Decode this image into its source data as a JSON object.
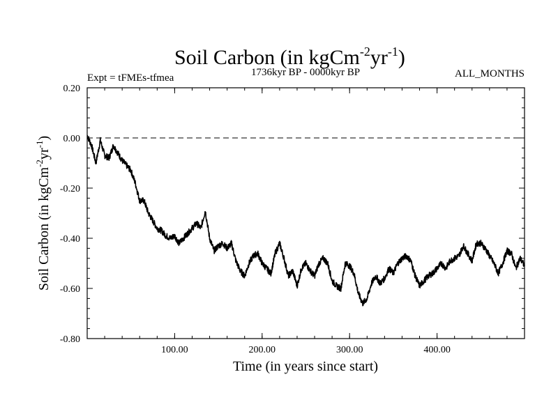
{
  "chart_data": {
    "type": "line",
    "title": "Soil Carbon (in kgCm",
    "title_sup": "-2",
    "title_mid": "yr",
    "title_sup2": "-1",
    "title_end": ")",
    "subtitle_left": "Expt = tFMEs-tfmea",
    "subtitle_center": "1736kyr BP - 0000kyr BP",
    "subtitle_right": "ALL_MONTHS",
    "xlabel": "Time (in years since start)",
    "ylabel_main": "Soil Carbon (in kgCm",
    "ylabel_sup": "-2",
    "ylabel_mid": "yr",
    "ylabel_sup2": "-1",
    "ylabel_end": ")",
    "xlim": [
      0,
      500
    ],
    "ylim": [
      -0.8,
      0.2
    ],
    "xticks": [
      100,
      200,
      300,
      400
    ],
    "xtick_labels": [
      "100.00",
      "200.00",
      "300.00",
      "400.00"
    ],
    "yticks": [
      0.2,
      0.0,
      -0.2,
      -0.4,
      -0.6,
      -0.8
    ],
    "ytick_labels": [
      "0.20",
      "0.00",
      "-0.20",
      "-0.40",
      "-0.60",
      "-0.80"
    ],
    "reference_line_y": 0.0,
    "series": [
      {
        "name": "Soil Carbon",
        "color": "#000000",
        "x": [
          0,
          5,
          10,
          15,
          20,
          25,
          30,
          35,
          40,
          45,
          50,
          55,
          60,
          65,
          70,
          75,
          80,
          85,
          90,
          95,
          100,
          105,
          110,
          115,
          120,
          125,
          130,
          135,
          140,
          145,
          150,
          155,
          160,
          165,
          170,
          175,
          180,
          185,
          190,
          195,
          200,
          205,
          210,
          215,
          220,
          225,
          230,
          235,
          240,
          245,
          250,
          255,
          260,
          265,
          270,
          275,
          280,
          285,
          290,
          295,
          300,
          305,
          310,
          315,
          320,
          325,
          330,
          335,
          340,
          345,
          350,
          355,
          360,
          365,
          370,
          375,
          380,
          385,
          390,
          395,
          400,
          405,
          410,
          415,
          420,
          425,
          430,
          435,
          440,
          445,
          450,
          455,
          460,
          465,
          470,
          475,
          480,
          485,
          490,
          495,
          500
        ],
        "y": [
          0.01,
          -0.03,
          -0.1,
          -0.01,
          -0.07,
          -0.08,
          -0.03,
          -0.06,
          -0.09,
          -0.11,
          -0.13,
          -0.18,
          -0.25,
          -0.25,
          -0.3,
          -0.33,
          -0.36,
          -0.37,
          -0.39,
          -0.4,
          -0.39,
          -0.42,
          -0.4,
          -0.38,
          -0.36,
          -0.34,
          -0.36,
          -0.29,
          -0.4,
          -0.45,
          -0.43,
          -0.42,
          -0.44,
          -0.42,
          -0.49,
          -0.53,
          -0.55,
          -0.5,
          -0.47,
          -0.46,
          -0.5,
          -0.52,
          -0.54,
          -0.46,
          -0.42,
          -0.48,
          -0.55,
          -0.53,
          -0.59,
          -0.52,
          -0.5,
          -0.53,
          -0.55,
          -0.5,
          -0.48,
          -0.5,
          -0.57,
          -0.59,
          -0.6,
          -0.5,
          -0.51,
          -0.54,
          -0.62,
          -0.66,
          -0.64,
          -0.58,
          -0.55,
          -0.58,
          -0.56,
          -0.52,
          -0.54,
          -0.5,
          -0.48,
          -0.47,
          -0.49,
          -0.55,
          -0.59,
          -0.57,
          -0.55,
          -0.54,
          -0.52,
          -0.5,
          -0.52,
          -0.49,
          -0.48,
          -0.47,
          -0.43,
          -0.46,
          -0.49,
          -0.42,
          -0.42,
          -0.44,
          -0.47,
          -0.5,
          -0.54,
          -0.5,
          -0.45,
          -0.46,
          -0.52,
          -0.48,
          -0.51
        ]
      }
    ]
  }
}
